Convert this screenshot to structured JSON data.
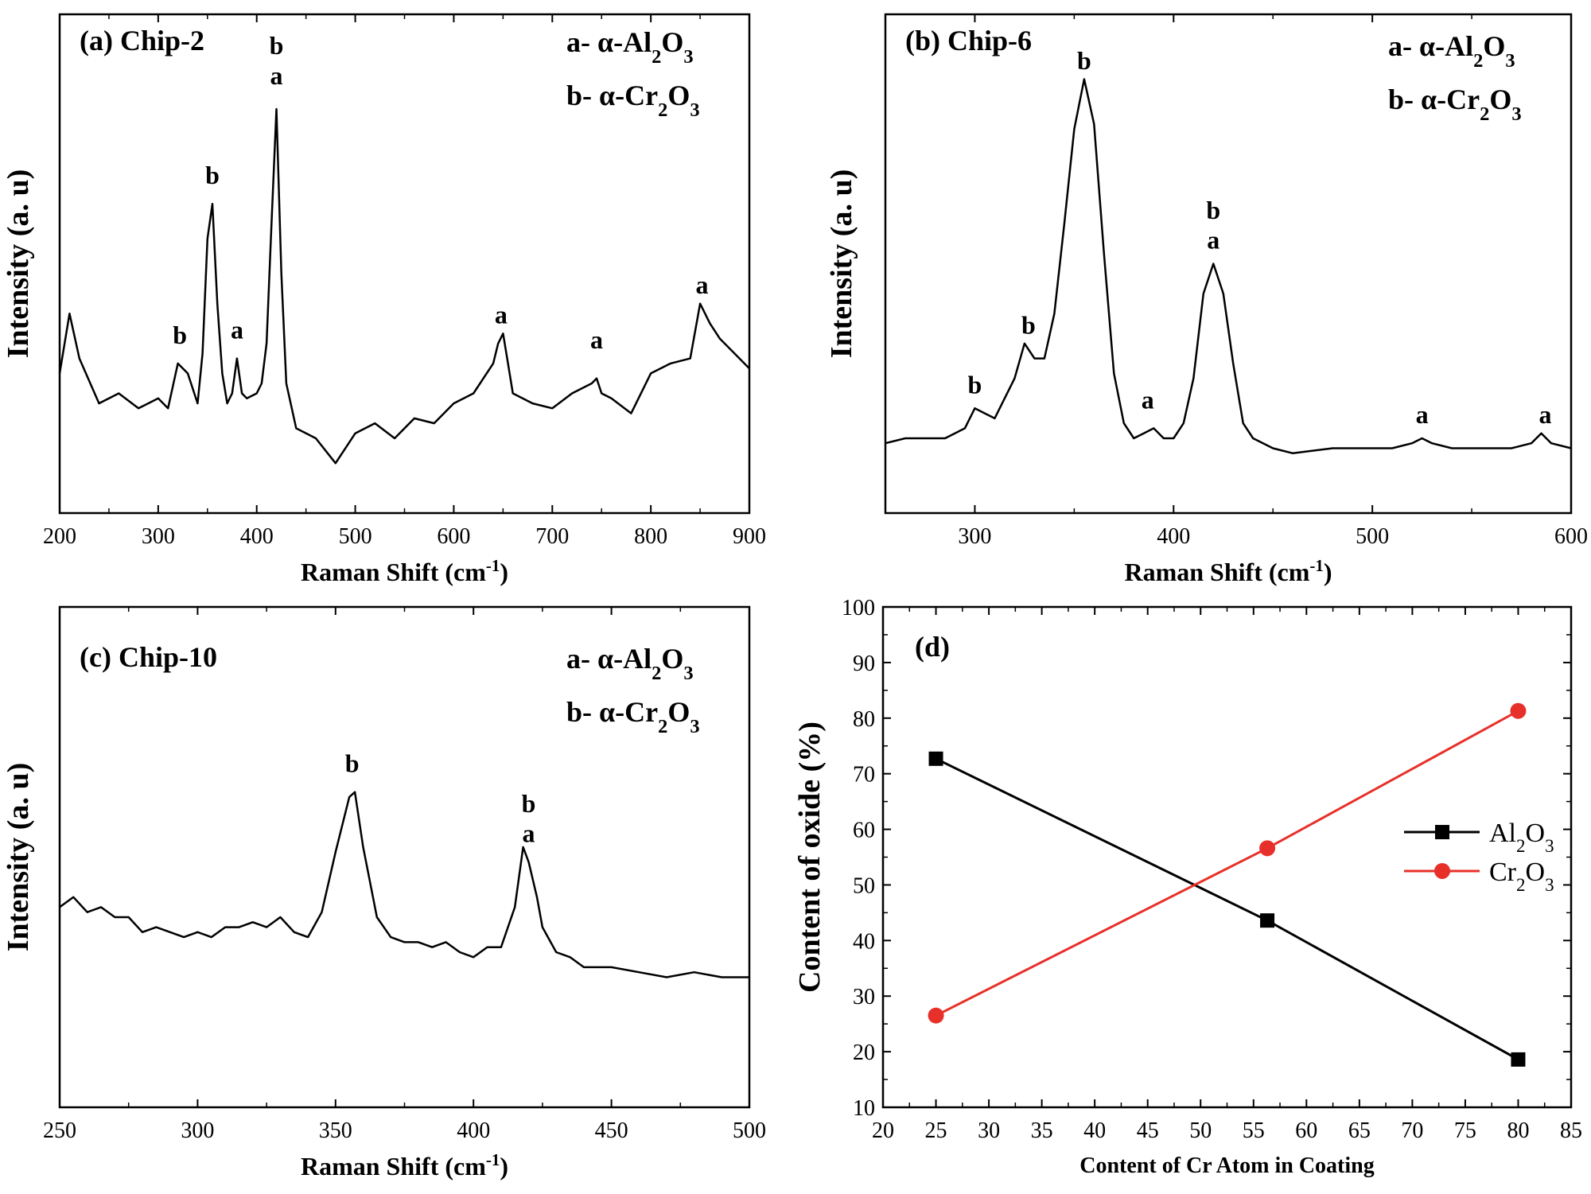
{
  "chart_data": [
    {
      "type": "line",
      "panel_label": "(a) Chip-2",
      "xlabel": "Raman Shift (cm",
      "xlabel_sup": "-1",
      "xlabel_close": ")",
      "ylabel": "Intensity (a. u)",
      "xlim": [
        200,
        900
      ],
      "ylim": [
        0,
        100
      ],
      "xticks": [
        200,
        300,
        400,
        500,
        600,
        700,
        800,
        900
      ],
      "yticks_shown": false,
      "legend": [
        {
          "key": "a-",
          "name": "α-Al",
          "sub1": "2",
          "mid": "O",
          "sub2": "3"
        },
        {
          "key": "b-",
          "name": "α-Cr",
          "sub1": "2",
          "mid": "O",
          "sub2": "3"
        }
      ],
      "series": [
        {
          "x": [
            200,
            210,
            220,
            240,
            260,
            280,
            300,
            310,
            320,
            330,
            340,
            345,
            350,
            355,
            360,
            365,
            370,
            375,
            380,
            385,
            390,
            400,
            405,
            410,
            415,
            420,
            425,
            430,
            440,
            460,
            480,
            500,
            520,
            540,
            560,
            580,
            600,
            620,
            640,
            645,
            650,
            655,
            660,
            680,
            700,
            720,
            740,
            745,
            750,
            760,
            780,
            800,
            820,
            840,
            850,
            855,
            860,
            870,
            880,
            900
          ],
          "y": [
            28,
            40,
            31,
            22,
            24,
            21,
            23,
            21,
            30,
            28,
            22,
            32,
            55,
            62,
            42,
            28,
            22,
            24,
            31,
            24,
            23,
            24,
            26,
            34,
            58,
            81,
            48,
            26,
            17,
            15,
            10,
            16,
            18,
            15,
            19,
            18,
            22,
            24,
            30,
            34,
            36,
            30,
            24,
            22,
            21,
            24,
            26,
            27,
            24,
            23,
            20,
            28,
            30,
            31,
            42,
            40,
            38,
            35,
            33,
            29
          ]
        }
      ],
      "annotations": [
        {
          "text": "b",
          "x": 322,
          "y": 34
        },
        {
          "text": "b",
          "x": 355,
          "y": 66
        },
        {
          "text": "a",
          "x": 380,
          "y": 35
        },
        {
          "text": "b",
          "x": 420,
          "y": 92
        },
        {
          "text": "a",
          "x": 420,
          "y": 86
        },
        {
          "text": "a",
          "x": 648,
          "y": 38
        },
        {
          "text": "a",
          "x": 745,
          "y": 33
        },
        {
          "text": "a",
          "x": 852,
          "y": 44
        }
      ]
    },
    {
      "type": "line",
      "panel_label": "(b) Chip-6",
      "xlabel": "Raman Shift (cm",
      "xlabel_sup": "-1",
      "xlabel_close": ")",
      "ylabel": "Intensity (a. u)",
      "xlim": [
        255,
        600
      ],
      "ylim": [
        0,
        100
      ],
      "xticks": [
        300,
        400,
        500,
        600
      ],
      "yticks_shown": false,
      "legend": [
        {
          "key": "a-",
          "name": "α-Al",
          "sub1": "2",
          "mid": "O",
          "sub2": "3"
        },
        {
          "key": "b-",
          "name": "α-Cr",
          "sub1": "2",
          "mid": "O",
          "sub2": "3"
        }
      ],
      "series": [
        {
          "x": [
            255,
            265,
            275,
            285,
            290,
            295,
            300,
            305,
            310,
            315,
            320,
            325,
            330,
            335,
            340,
            345,
            350,
            355,
            360,
            365,
            370,
            375,
            380,
            385,
            390,
            395,
            400,
            405,
            410,
            415,
            420,
            425,
            430,
            435,
            440,
            450,
            460,
            480,
            500,
            510,
            520,
            525,
            530,
            540,
            560,
            570,
            580,
            585,
            590,
            600
          ],
          "y": [
            14,
            15,
            15,
            15,
            16,
            17,
            21,
            20,
            19,
            23,
            27,
            34,
            31,
            31,
            40,
            58,
            77,
            87,
            78,
            52,
            28,
            18,
            15,
            16,
            17,
            15,
            15,
            18,
            27,
            44,
            50,
            44,
            30,
            18,
            15,
            13,
            12,
            13,
            13,
            13,
            14,
            15,
            14,
            13,
            13,
            13,
            14,
            16,
            14,
            13
          ]
        }
      ],
      "annotations": [
        {
          "text": "b",
          "x": 300,
          "y": 24
        },
        {
          "text": "b",
          "x": 327,
          "y": 36
        },
        {
          "text": "b",
          "x": 355,
          "y": 89
        },
        {
          "text": "a",
          "x": 387,
          "y": 21
        },
        {
          "text": "b",
          "x": 420,
          "y": 59
        },
        {
          "text": "a",
          "x": 420,
          "y": 53
        },
        {
          "text": "a",
          "x": 525,
          "y": 18
        },
        {
          "text": "a",
          "x": 587,
          "y": 18
        }
      ]
    },
    {
      "type": "line",
      "panel_label": "(c) Chip-10",
      "xlabel": "Raman Shift (cm",
      "xlabel_sup": "-1",
      "xlabel_close": ")",
      "ylabel": "Intensity (a. u)",
      "xlim": [
        250,
        500
      ],
      "ylim": [
        0,
        100
      ],
      "xticks": [
        250,
        300,
        350,
        400,
        450,
        500
      ],
      "yticks_shown": false,
      "legend": [
        {
          "key": "a-",
          "name": "α-Al",
          "sub1": "2",
          "mid": "O",
          "sub2": "3"
        },
        {
          "key": "b-",
          "name": "α-Cr",
          "sub1": "2",
          "mid": "O",
          "sub2": "3"
        }
      ],
      "series": [
        {
          "x": [
            250,
            255,
            260,
            265,
            270,
            275,
            280,
            285,
            290,
            295,
            300,
            305,
            310,
            315,
            320,
            325,
            330,
            335,
            340,
            345,
            350,
            355,
            357,
            360,
            365,
            370,
            375,
            380,
            385,
            390,
            395,
            400,
            405,
            410,
            415,
            418,
            420,
            423,
            425,
            430,
            435,
            440,
            450,
            460,
            470,
            480,
            490,
            500
          ],
          "y": [
            40,
            42,
            39,
            40,
            38,
            38,
            35,
            36,
            35,
            34,
            35,
            34,
            36,
            36,
            37,
            36,
            38,
            35,
            34,
            39,
            51,
            62,
            63,
            52,
            38,
            34,
            33,
            33,
            32,
            33,
            31,
            30,
            32,
            32,
            40,
            52,
            49,
            42,
            36,
            31,
            30,
            28,
            28,
            27,
            26,
            27,
            26,
            26
          ]
        }
      ],
      "annotations": [
        {
          "text": "b",
          "x": 356,
          "y": 67
        },
        {
          "text": "b",
          "x": 420,
          "y": 59
        },
        {
          "text": "a",
          "x": 420,
          "y": 53
        }
      ]
    },
    {
      "type": "line",
      "panel_label": "(d)",
      "xlabel": "Content of Cr Atom in Coating",
      "ylabel": "Content of oxide (%)",
      "xlim": [
        20,
        85
      ],
      "ylim": [
        10,
        100
      ],
      "xticks": [
        20,
        25,
        30,
        35,
        40,
        45,
        50,
        55,
        60,
        65,
        70,
        75,
        80,
        85
      ],
      "yticks": [
        10,
        20,
        30,
        40,
        50,
        60,
        70,
        80,
        90,
        100
      ],
      "legend_position": "right-middle",
      "series": [
        {
          "name": "Al",
          "name_sub1": "2",
          "name_mid": "O",
          "name_sub2": "3",
          "color": "#000000",
          "marker": "square",
          "x": [
            25,
            56.3,
            80
          ],
          "y": [
            72.7,
            43.6,
            18.6
          ]
        },
        {
          "name": "Cr",
          "name_sub1": "2",
          "name_mid": "O",
          "name_sub2": "3",
          "color": "#e8302a",
          "marker": "circle",
          "x": [
            25,
            56.3,
            80
          ],
          "y": [
            26.5,
            56.6,
            81.3
          ]
        }
      ]
    }
  ]
}
